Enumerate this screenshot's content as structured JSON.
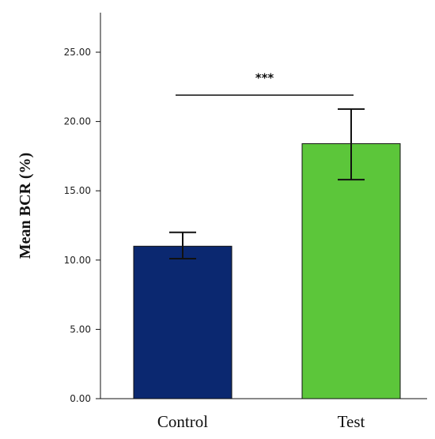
{
  "chart_data": {
    "type": "bar",
    "categories": [
      "Control",
      "Test"
    ],
    "values": [
      11.0,
      18.4
    ],
    "error_low": [
      10.1,
      15.8
    ],
    "error_high": [
      12.0,
      20.9
    ],
    "bar_colors": [
      "#0b2870",
      "#5cc63a"
    ],
    "ylabel": "Mean BCR (%)",
    "xlabel": "",
    "ylim": [
      0,
      27.5
    ],
    "yticks": [
      "0.00",
      "5.00",
      "10.00",
      "15.00",
      "20.00",
      "25.00"
    ],
    "ytick_values": [
      0,
      5,
      10,
      15,
      20,
      25
    ],
    "grid": false,
    "annotation": {
      "text": "***",
      "y_value": 21.9,
      "from_category": "Control",
      "to_category": "Test"
    }
  }
}
